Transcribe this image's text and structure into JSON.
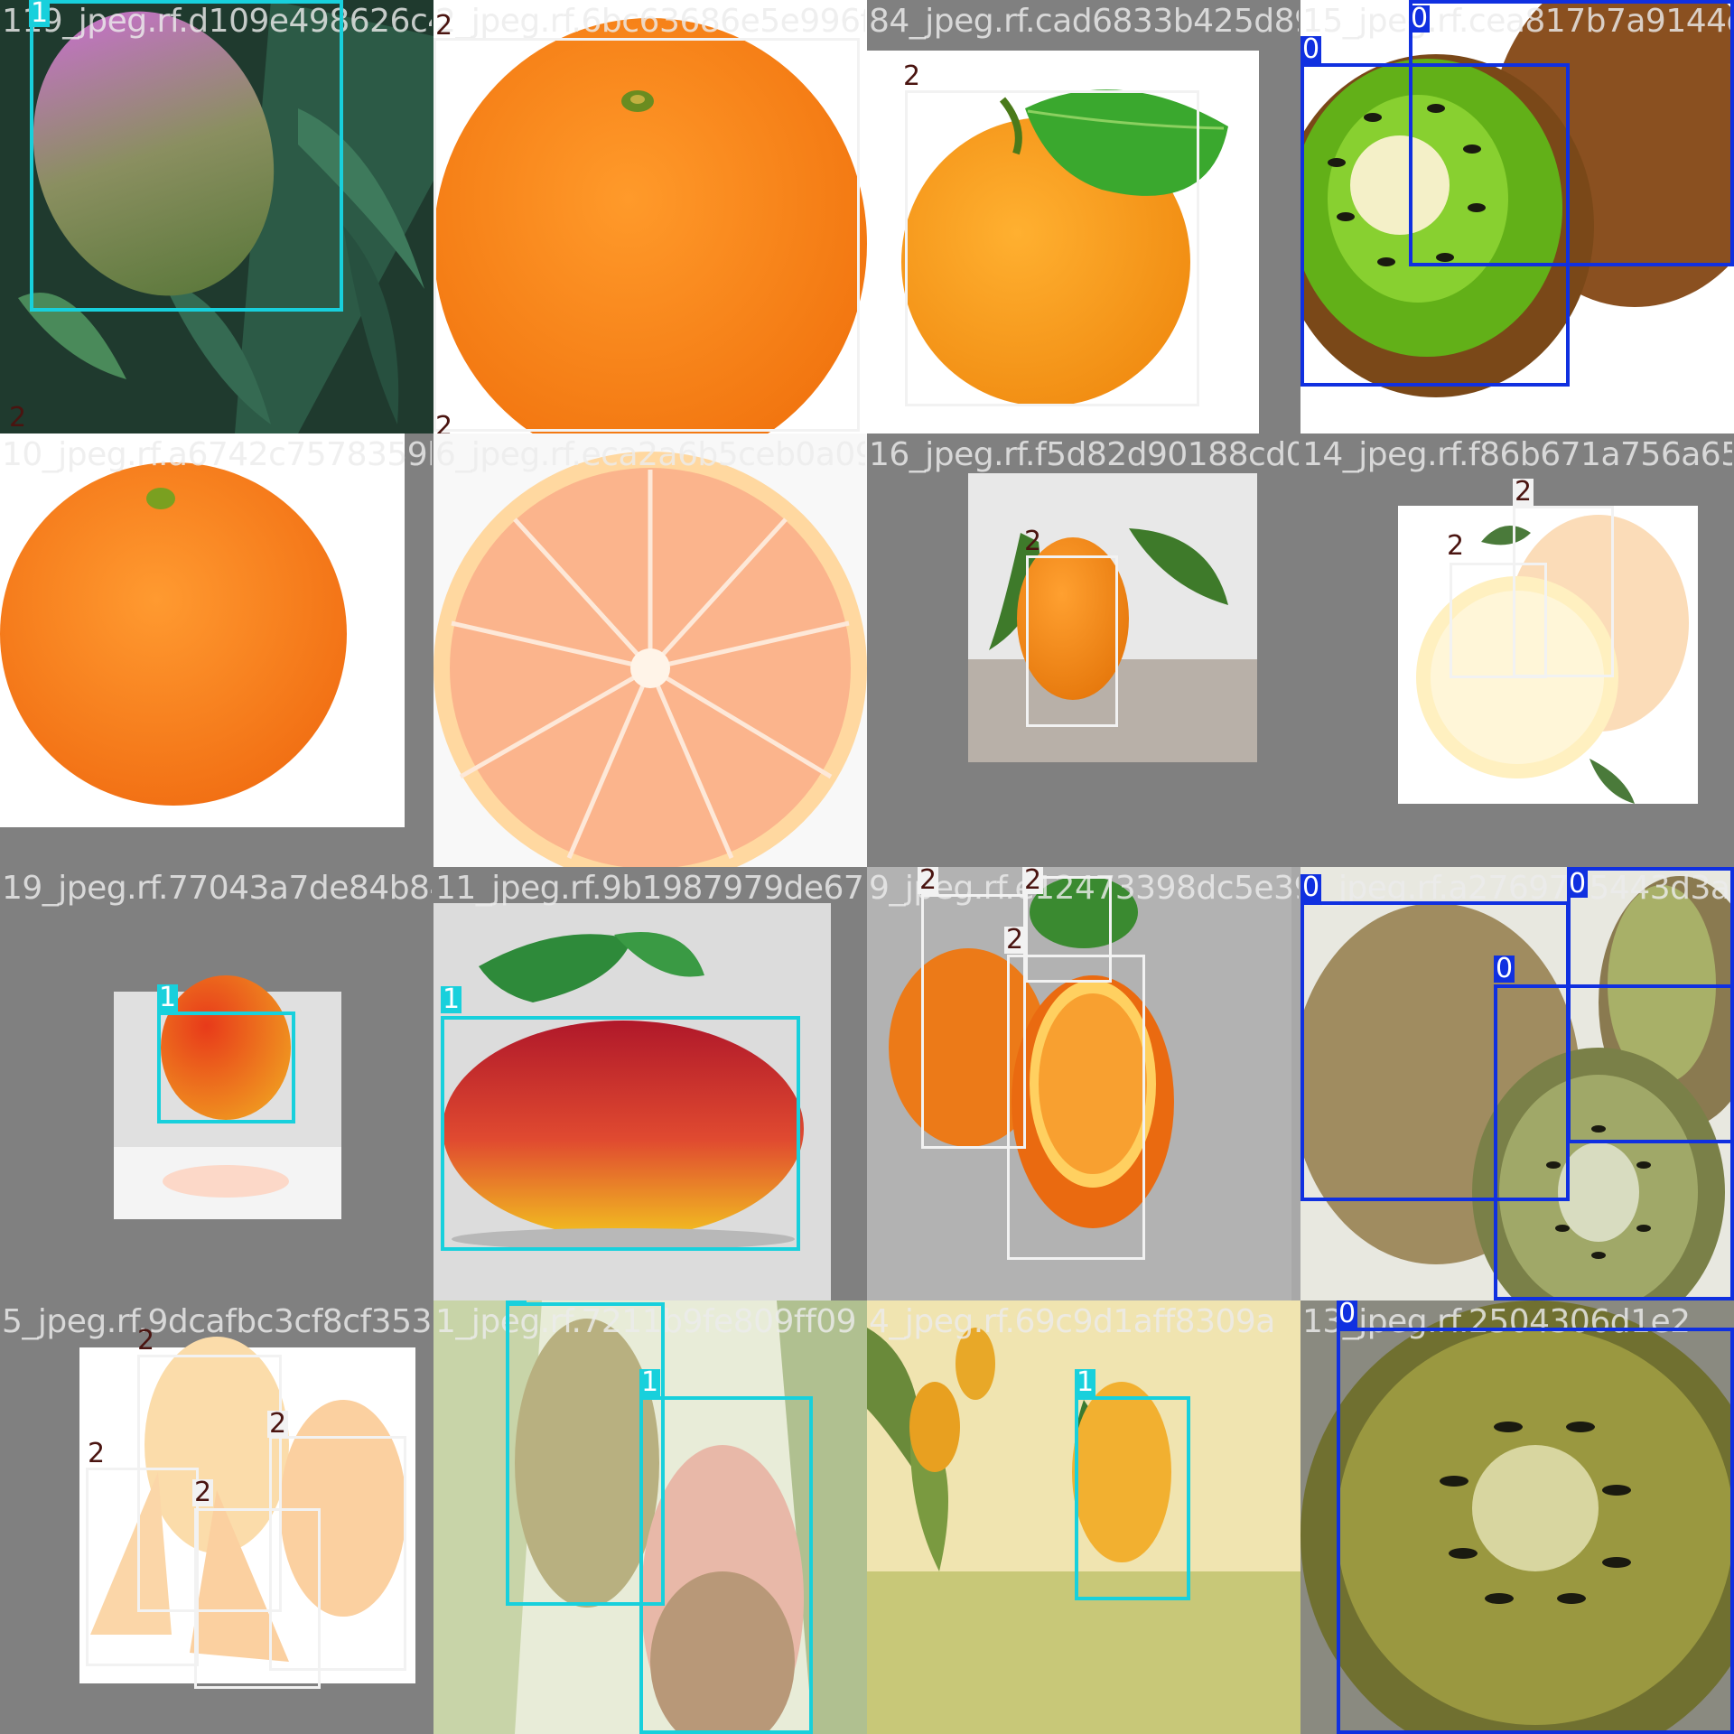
{
  "class_colors": {
    "0": "#1030e0",
    "1": "#18d0dc",
    "2": "#f2f2f2"
  },
  "tiles": [
    {
      "filename": "119_jpeg.rf.d109e498626c4",
      "labels": [
        "1",
        "2"
      ]
    },
    {
      "filename": "2_jpeg.rf.6bc63686e5e996f9c1d14f3b8",
      "labels": [
        "2",
        "2"
      ]
    },
    {
      "filename": "84_jpeg.rf.cad6833b425d891a2",
      "labels": [
        "2"
      ]
    },
    {
      "filename": "15_jpeg.rf.cea817b7a9144d",
      "labels": [
        "0",
        "0"
      ]
    },
    {
      "filename": "10_jpeg.rf.a6742c7578359b1",
      "labels": []
    },
    {
      "filename": "6_jpeg.rf.eca2a6b5ceb0a091",
      "labels": []
    },
    {
      "filename": "16_jpeg.rf.f5d82d90188cd0f2",
      "labels": [
        "2"
      ]
    },
    {
      "filename": "14_jpeg.rf.f86b671a756a656a",
      "labels": [
        "2",
        "2"
      ]
    },
    {
      "filename": "19_jpeg.rf.77043a7de84b84",
      "labels": [
        "1"
      ]
    },
    {
      "filename": "11_jpeg.rf.9b1987979de6732",
      "labels": [
        "1"
      ]
    },
    {
      "filename": "9_jpeg.rf.e12473398dc5e390",
      "labels": [
        "2",
        "2",
        "2"
      ]
    },
    {
      "filename": "3_jpeg.rf.a2769745443d3a4",
      "labels": [
        "0",
        "0",
        "0"
      ]
    },
    {
      "filename": "5_jpeg.rf.9dcafbc3cf8cf353c",
      "labels": [
        "2",
        "2",
        "2",
        "2"
      ]
    },
    {
      "filename": "1_jpeg.rf.7211b9fe809ff09",
      "labels": [
        "1",
        "1"
      ]
    },
    {
      "filename": "4_jpeg.rf.69c9d1aff8309a",
      "labels": [
        "1"
      ]
    },
    {
      "filename": "13_jpeg.rf.2504306d1e2",
      "labels": [
        "0"
      ]
    }
  ]
}
